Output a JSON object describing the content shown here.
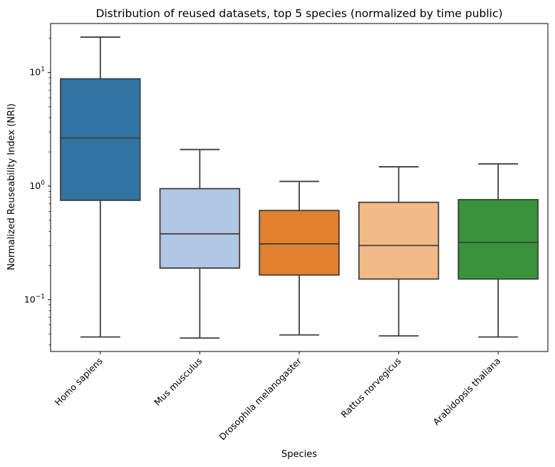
{
  "chart_data": {
    "type": "box",
    "title": "Distribution of reused datasets, top 5 species (normalized by time public)",
    "xlabel": "Species",
    "ylabel": "Normalized Reuseability Index (NRI)",
    "yscale": "log",
    "ylim": [
      0.035,
      27
    ],
    "yticks": [
      {
        "value": 0.1,
        "base": "10",
        "exp": "−1"
      },
      {
        "value": 1,
        "base": "10",
        "exp": "0"
      },
      {
        "value": 10,
        "base": "10",
        "exp": "1"
      }
    ],
    "grid": false,
    "categories": [
      "Homo sapiens",
      "Mus musculus",
      "Drosophila melanogaster",
      "Rattus norvegicus",
      "Arabidopsis thaliana"
    ],
    "boxes": [
      {
        "whislo": 0.047,
        "q1": 0.75,
        "med": 2.65,
        "q3": 8.8,
        "whishi": 20.5,
        "color": "#3274a1"
      },
      {
        "whislo": 0.046,
        "q1": 0.19,
        "med": 0.38,
        "q3": 0.95,
        "whishi": 2.1,
        "color": "#b0c6e3"
      },
      {
        "whislo": 0.049,
        "q1": 0.165,
        "med": 0.31,
        "q3": 0.61,
        "whishi": 1.1,
        "color": "#e1812c"
      },
      {
        "whislo": 0.048,
        "q1": 0.152,
        "med": 0.3,
        "q3": 0.72,
        "whishi": 1.48,
        "color": "#f0bb87"
      },
      {
        "whislo": 0.047,
        "q1": 0.152,
        "med": 0.32,
        "q3": 0.76,
        "whishi": 1.57,
        "color": "#3a923a"
      }
    ]
  }
}
